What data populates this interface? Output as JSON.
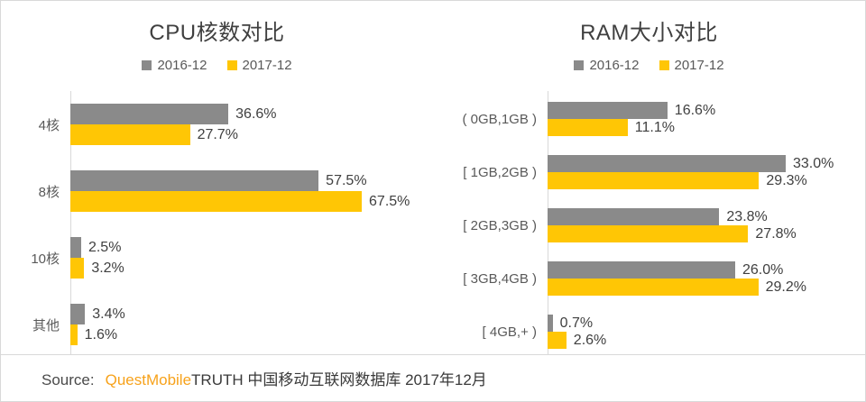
{
  "colors": {
    "series_gray": "#8a8a8a",
    "series_yellow": "#ffc605",
    "axis_line": "#d9d9d9",
    "brand_orange": "#f7a21b",
    "title_text": "#3f3f3f",
    "label_text": "#595959"
  },
  "source": {
    "label": "Source:",
    "brand": "QuestMobile",
    "rest": "TRUTH 中国移动互联网数据库 2017年12月"
  },
  "chart_data": [
    {
      "type": "bar",
      "orientation": "horizontal",
      "title": "CPU核数对比",
      "legend_position": "top",
      "grid": false,
      "value_format": {
        "decimals": 1,
        "suffix": "%"
      },
      "scale_max": 84,
      "categories": [
        "4核",
        "8核",
        "10核",
        "其他"
      ],
      "series": [
        {
          "name": "2016-12",
          "color": "#8a8a8a",
          "values": [
            36.6,
            57.5,
            2.5,
            3.4
          ]
        },
        {
          "name": "2017-12",
          "color": "#ffc605",
          "values": [
            27.7,
            67.5,
            3.2,
            1.6
          ]
        }
      ]
    },
    {
      "type": "bar",
      "orientation": "horizontal",
      "title": "RAM大小对比",
      "legend_position": "top",
      "grid": false,
      "value_format": {
        "decimals": 1,
        "suffix": "%"
      },
      "scale_max": 44,
      "categories": [
        "( 0GB,1GB )",
        "[ 1GB,2GB )",
        "[ 2GB,3GB )",
        "[ 3GB,4GB )",
        "[ 4GB,+ )"
      ],
      "series": [
        {
          "name": "2016-12",
          "color": "#8a8a8a",
          "values": [
            16.6,
            33.0,
            23.8,
            26.0,
            0.7
          ]
        },
        {
          "name": "2017-12",
          "color": "#ffc605",
          "values": [
            11.1,
            29.3,
            27.8,
            29.2,
            2.6
          ]
        }
      ]
    }
  ]
}
